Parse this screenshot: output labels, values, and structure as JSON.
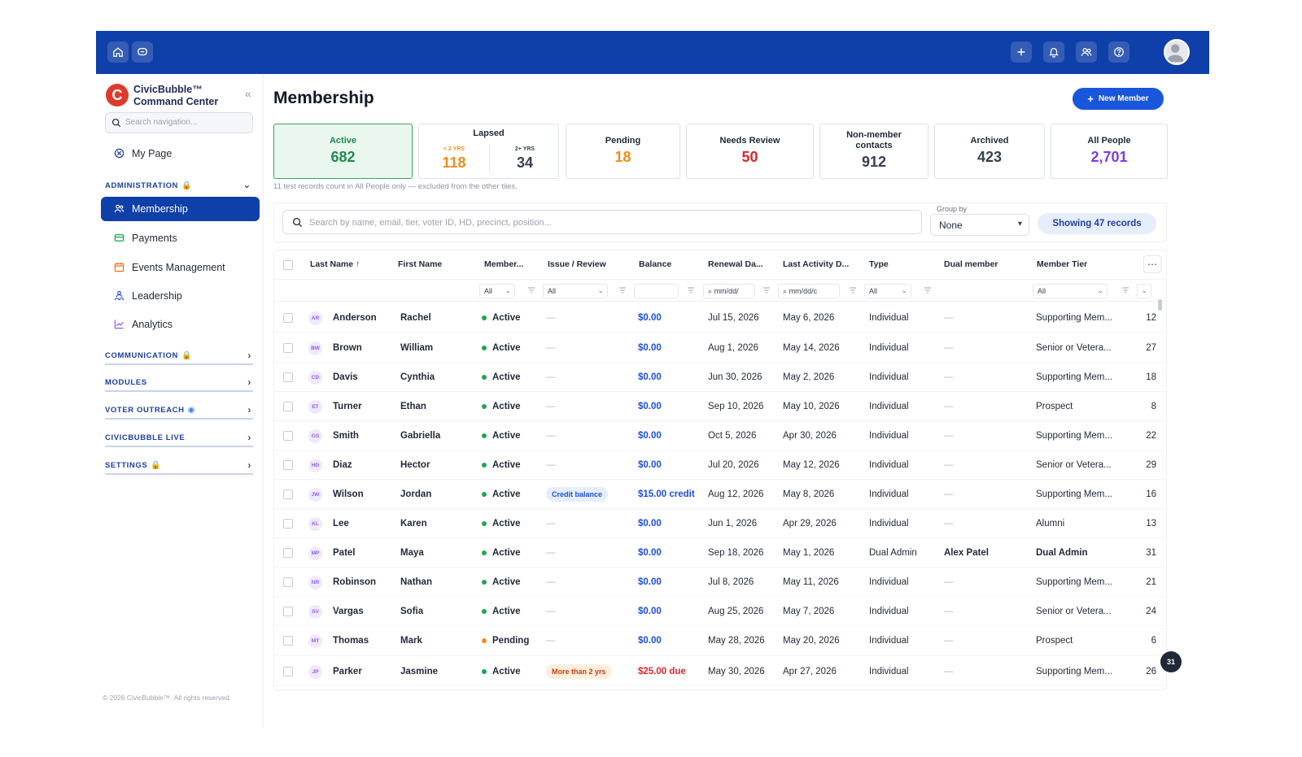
{
  "topbar": {
    "left_icons": [
      "home-icon",
      "chat-icon"
    ],
    "right_icons": [
      "plus-icon",
      "bell-icon",
      "users-icon",
      "help-icon"
    ]
  },
  "brand": {
    "line1": "CivicBubble™",
    "line2": "Command Center",
    "logo": "C"
  },
  "sidebar": {
    "search_placeholder": "Search navigation...",
    "my_page": "My Page",
    "admin_label": "ADMINISTRATION",
    "items": [
      {
        "label": "Membership",
        "icon": "membership-icon",
        "active": true
      },
      {
        "label": "Payments",
        "icon": "payments-icon"
      },
      {
        "label": "Events Management",
        "icon": "calendar-icon"
      },
      {
        "label": "Leadership",
        "icon": "leadership-icon"
      },
      {
        "label": "Analytics",
        "icon": "analytics-icon"
      }
    ],
    "sections": [
      {
        "label": "COMMUNICATION",
        "lock": true
      },
      {
        "label": "MODULES"
      },
      {
        "label": "VOTER OUTREACH",
        "eye": true
      },
      {
        "label": "CIVICBUBBLE LIVE"
      },
      {
        "label": "SETTINGS",
        "lock": true
      }
    ],
    "footer": "© 2026 CivicBubble™. All rights reserved."
  },
  "page": {
    "title": "Membership",
    "new_member_label": "New Member"
  },
  "tiles": {
    "active": {
      "label": "Active",
      "value": "682"
    },
    "lapsed": {
      "label": "Lapsed",
      "sub1_label": "< 2 YRS",
      "sub1_value": "118",
      "sub2_label": "2+ YRS",
      "sub2_value": "34"
    },
    "pending": {
      "label": "Pending",
      "value": "18"
    },
    "needs_review": {
      "label": "Needs Review",
      "value": "50"
    },
    "non_member": {
      "label": "Non-member contacts",
      "value": "912"
    },
    "archived": {
      "label": "Archived",
      "value": "423"
    },
    "all_people": {
      "label": "All People",
      "value": "2,701"
    }
  },
  "colors": {
    "active": "#1f8a4c",
    "lapsed": "#f08c1a",
    "pending": "#f08c1a",
    "needs_review": "#d62828",
    "dark": "#374151",
    "all_people": "#7c3aed",
    "link_blue": "#1d4ed8",
    "due_red": "#d62828",
    "status_active": "#22a356",
    "status_pending": "#f08c1a"
  },
  "tile_note": "11 test records count in All People only — excluded from the other tiles.",
  "toolbar": {
    "search_placeholder": "Search by name, email, tier, voter ID, HD, precinct, position...",
    "group_by_label": "Group by",
    "group_by_value": "None",
    "showing": "Showing 47 records"
  },
  "table": {
    "headers": {
      "last_name": "Last Name",
      "first_name": "First Name",
      "member": "Member...",
      "issue": "Issue / Review",
      "balance": "Balance",
      "renewal": "Renewal Da...",
      "last_activity": "Last Activity D...",
      "type": "Type",
      "dual": "Dual member",
      "tier": "Member Tier"
    },
    "filters": {
      "member": "All",
      "issue": "All",
      "renewal": "mm/dd/",
      "last_activity": "mm/dd/c",
      "type": "All",
      "tier": "All"
    },
    "rows": [
      {
        "initials": "AR",
        "last": "Anderson",
        "first": "Rachel",
        "status": "Active",
        "status_color": "active",
        "issue": "—",
        "issue_kind": "none",
        "balance": "$0.00",
        "balance_kind": "blue",
        "renewal": "Jul 15, 2026",
        "last_activity": "May 6, 2026",
        "type": "Individual",
        "dual": "—",
        "tier": "Supporting Mem...",
        "n": "12"
      },
      {
        "initials": "BW",
        "last": "Brown",
        "first": "William",
        "status": "Active",
        "status_color": "active",
        "issue": "—",
        "issue_kind": "none",
        "balance": "$0.00",
        "balance_kind": "blue",
        "renewal": "Aug 1, 2026",
        "last_activity": "May 14, 2026",
        "type": "Individual",
        "dual": "—",
        "tier": "Senior or Vetera...",
        "n": "27"
      },
      {
        "initials": "CD",
        "last": "Davis",
        "first": "Cynthia",
        "status": "Active",
        "status_color": "active",
        "issue": "—",
        "issue_kind": "none",
        "balance": "$0.00",
        "balance_kind": "blue",
        "renewal": "Jun 30, 2026",
        "last_activity": "May 2, 2026",
        "type": "Individual",
        "dual": "—",
        "tier": "Supporting Mem...",
        "n": "18"
      },
      {
        "initials": "ET",
        "last": "Turner",
        "first": "Ethan",
        "status": "Active",
        "status_color": "active",
        "issue": "—",
        "issue_kind": "none",
        "balance": "$0.00",
        "balance_kind": "blue",
        "renewal": "Sep 10, 2026",
        "last_activity": "May 10, 2026",
        "type": "Individual",
        "dual": "—",
        "tier": "Prospect",
        "n": "8"
      },
      {
        "initials": "GS",
        "last": "Smith",
        "first": "Gabriella",
        "status": "Active",
        "status_color": "active",
        "issue": "—",
        "issue_kind": "none",
        "balance": "$0.00",
        "balance_kind": "blue",
        "renewal": "Oct 5, 2026",
        "last_activity": "Apr 30, 2026",
        "type": "Individual",
        "dual": "—",
        "tier": "Supporting Mem...",
        "n": "22"
      },
      {
        "initials": "HD",
        "last": "Diaz",
        "first": "Hector",
        "status": "Active",
        "status_color": "active",
        "issue": "—",
        "issue_kind": "none",
        "balance": "$0.00",
        "balance_kind": "blue",
        "renewal": "Jul 20, 2026",
        "last_activity": "May 12, 2026",
        "type": "Individual",
        "dual": "—",
        "tier": "Senior or Vetera...",
        "n": "29"
      },
      {
        "initials": "JW",
        "last": "Wilson",
        "first": "Jordan",
        "status": "Active",
        "status_color": "active",
        "issue": "Credit balance",
        "issue_kind": "credit",
        "balance": "$15.00 credit",
        "balance_kind": "blue",
        "renewal": "Aug 12, 2026",
        "last_activity": "May 8, 2026",
        "type": "Individual",
        "dual": "—",
        "tier": "Supporting Mem...",
        "n": "16"
      },
      {
        "initials": "KL",
        "last": "Lee",
        "first": "Karen",
        "status": "Active",
        "status_color": "active",
        "issue": "—",
        "issue_kind": "none",
        "balance": "$0.00",
        "balance_kind": "blue",
        "renewal": "Jun 1, 2026",
        "last_activity": "Apr 29, 2026",
        "type": "Individual",
        "dual": "—",
        "tier": "Alumni",
        "n": "13"
      },
      {
        "initials": "MP",
        "last": "Patel",
        "first": "Maya",
        "status": "Active",
        "status_color": "active",
        "issue": "—",
        "issue_kind": "none",
        "balance": "$0.00",
        "balance_kind": "blue",
        "renewal": "Sep 18, 2026",
        "last_activity": "May 1, 2026",
        "type": "Dual Admin",
        "dual": "Alex Patel",
        "tier": "Dual Admin",
        "n": "31"
      },
      {
        "initials": "NR",
        "last": "Robinson",
        "first": "Nathan",
        "status": "Active",
        "status_color": "active",
        "issue": "—",
        "issue_kind": "none",
        "balance": "$0.00",
        "balance_kind": "blue",
        "renewal": "Jul 8, 2026",
        "last_activity": "May 11, 2026",
        "type": "Individual",
        "dual": "—",
        "tier": "Supporting Mem...",
        "n": "21"
      },
      {
        "initials": "SV",
        "last": "Vargas",
        "first": "Sofia",
        "status": "Active",
        "status_color": "active",
        "issue": "—",
        "issue_kind": "none",
        "balance": "$0.00",
        "balance_kind": "blue",
        "renewal": "Aug 25, 2026",
        "last_activity": "May 7, 2026",
        "type": "Individual",
        "dual": "—",
        "tier": "Senior or Vetera...",
        "n": "24"
      },
      {
        "initials": "MT",
        "last": "Thomas",
        "first": "Mark",
        "status": "Pending",
        "status_color": "pending",
        "issue": "—",
        "issue_kind": "none",
        "balance": "$0.00",
        "balance_kind": "blue",
        "renewal": "May 28, 2026",
        "last_activity": "May 20, 2026",
        "type": "Individual",
        "dual": "—",
        "tier": "Prospect",
        "n": "6"
      },
      {
        "initials": "JP",
        "last": "Parker",
        "first": "Jasmine",
        "status": "Active",
        "status_color": "active",
        "issue": "More than 2 yrs",
        "issue_kind": "over",
        "balance": "$25.00 due",
        "balance_kind": "red",
        "renewal": "May 30, 2026",
        "last_activity": "Apr 27, 2026",
        "type": "Individual",
        "dual": "—",
        "tier": "Supporting Mem...",
        "n": "26"
      }
    ]
  },
  "float_badge": "31"
}
